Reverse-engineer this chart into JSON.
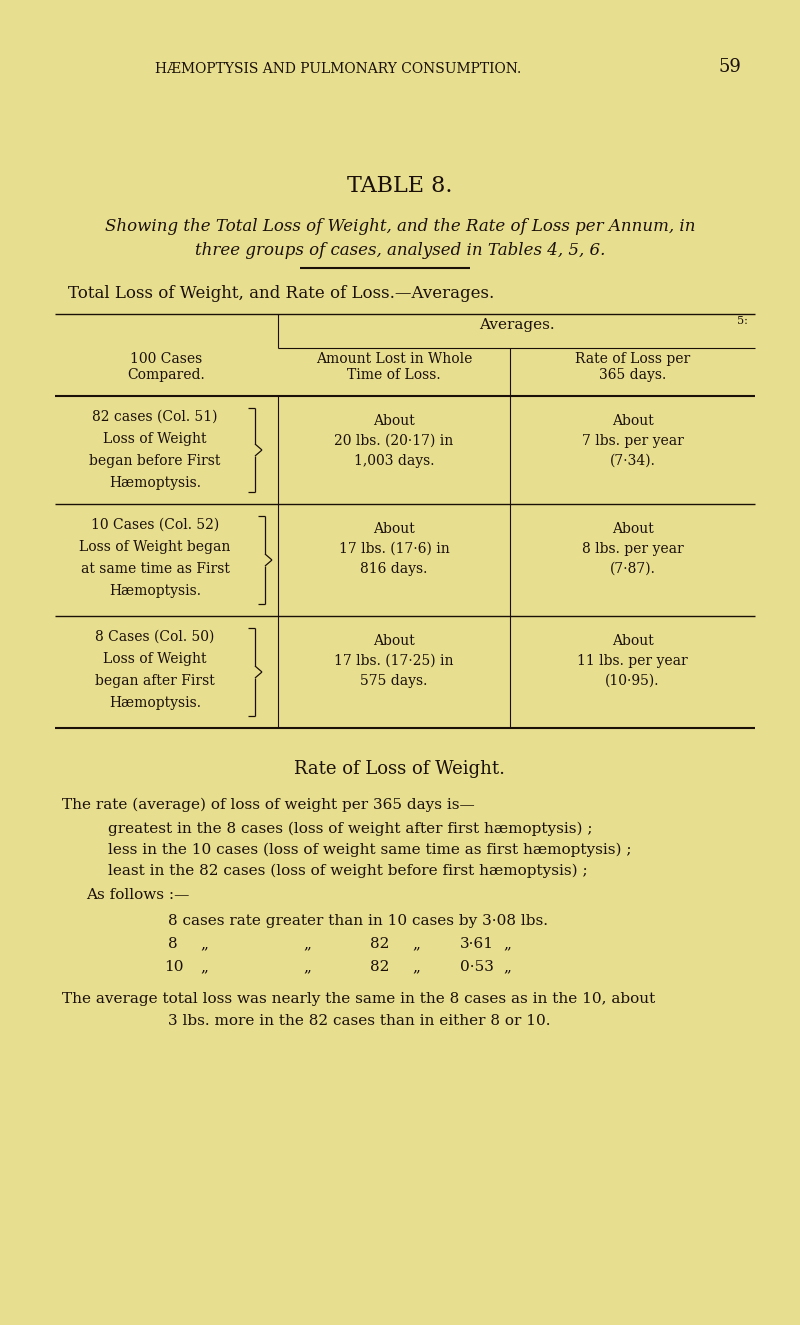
{
  "bg_color": "#e8de90",
  "text_color": "#1a1008",
  "page_number": "59",
  "header": "HÆMOPTYSIS AND PULMONARY CONSUMPTION.",
  "table_title": "TABLE 8.",
  "subtitle_line1": "Showing the Total Loss of Weight, and the Rate of Loss per Annum, in",
  "subtitle_line2": "three groups of cases, analysed in Tables 4, 5, 6.",
  "section_header": "Total Loss of Weight, and Rate of Loss.—Averages.",
  "col_header_left": "100 Cases\nCompared.",
  "col_header_averages": "Averages.",
  "col_header_amount": "Amount Lost in Whole\nTime of Loss.",
  "col_header_rate": "Rate of Loss per\n365 days.",
  "row1_left_lines": [
    "82 cases (Col. 51)",
    "Loss of Weight",
    "began before First",
    "Hæmoptysis."
  ],
  "row1_amount_lines": [
    "About",
    "20 lbs. (20·17) in",
    "1,003 days."
  ],
  "row1_rate_lines": [
    "About",
    "7 lbs. per year",
    "(7·34)."
  ],
  "row2_left_lines": [
    "10 Cases (Col. 52)",
    "Loss of Weight began",
    "at same time as First",
    "Hæmoptysis."
  ],
  "row2_amount_lines": [
    "About",
    "17 lbs. (17·6) in",
    "816 days."
  ],
  "row2_rate_lines": [
    "About",
    "8 lbs. per year",
    "(7·87)."
  ],
  "row3_left_lines": [
    "8 Cases (Col. 50)",
    "Loss of Weight",
    "began after First",
    "Hæmoptysis."
  ],
  "row3_amount_lines": [
    "About",
    "17 lbs. (17·25) in",
    "575 days."
  ],
  "row3_rate_lines": [
    "About",
    "11 lbs. per year",
    "(10·95)."
  ],
  "rate_section_title": "Rate of Loss of Weight.",
  "rate_para1": "The rate (average) of loss of weight per 365 days is—",
  "rate_bullet1": "greatest in the 8 cases (loss of weight after first hæmoptysis) ;",
  "rate_bullet2": "less in the 10 cases (loss of weight same time as first hæmoptysis) ;",
  "rate_bullet3": "least in the 82 cases (loss of weight before first hæmoptysis) ;",
  "as_follows": "As follows :—",
  "follows_line1": "8 cases rate greater than in 10 cases by 3·08 lbs.",
  "final_para_line1": "The average total loss was nearly the same in the 8 cases as in the 10, about",
  "final_para_line2": "3 lbs. more in the 82 cases than in either 8 or 10.",
  "fig_w": 8.0,
  "fig_h": 13.25,
  "dpi": 100
}
